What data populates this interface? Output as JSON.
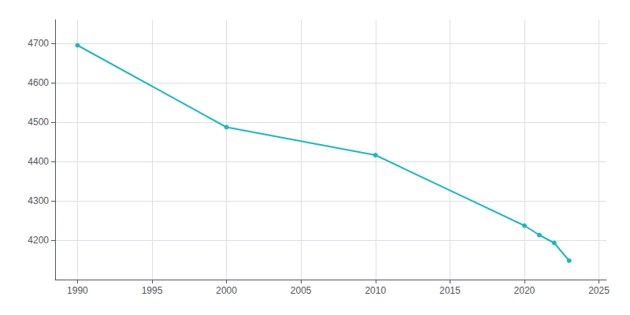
{
  "chart_data": {
    "type": "line",
    "x": [
      1990,
      2000,
      2010,
      2020,
      2021,
      2022,
      2023
    ],
    "values": [
      4695,
      4487,
      4416,
      4237,
      4213,
      4193,
      4148
    ],
    "color": "#1ab8c4",
    "marker": "circle",
    "xlim": [
      1988.5,
      2025.5
    ],
    "ylim": [
      4100,
      4760
    ],
    "xticks": [
      1990,
      1995,
      2000,
      2005,
      2010,
      2015,
      2020,
      2025
    ],
    "yticks": [
      4200,
      4300,
      4400,
      4500,
      4600,
      4700
    ],
    "grid": true
  }
}
